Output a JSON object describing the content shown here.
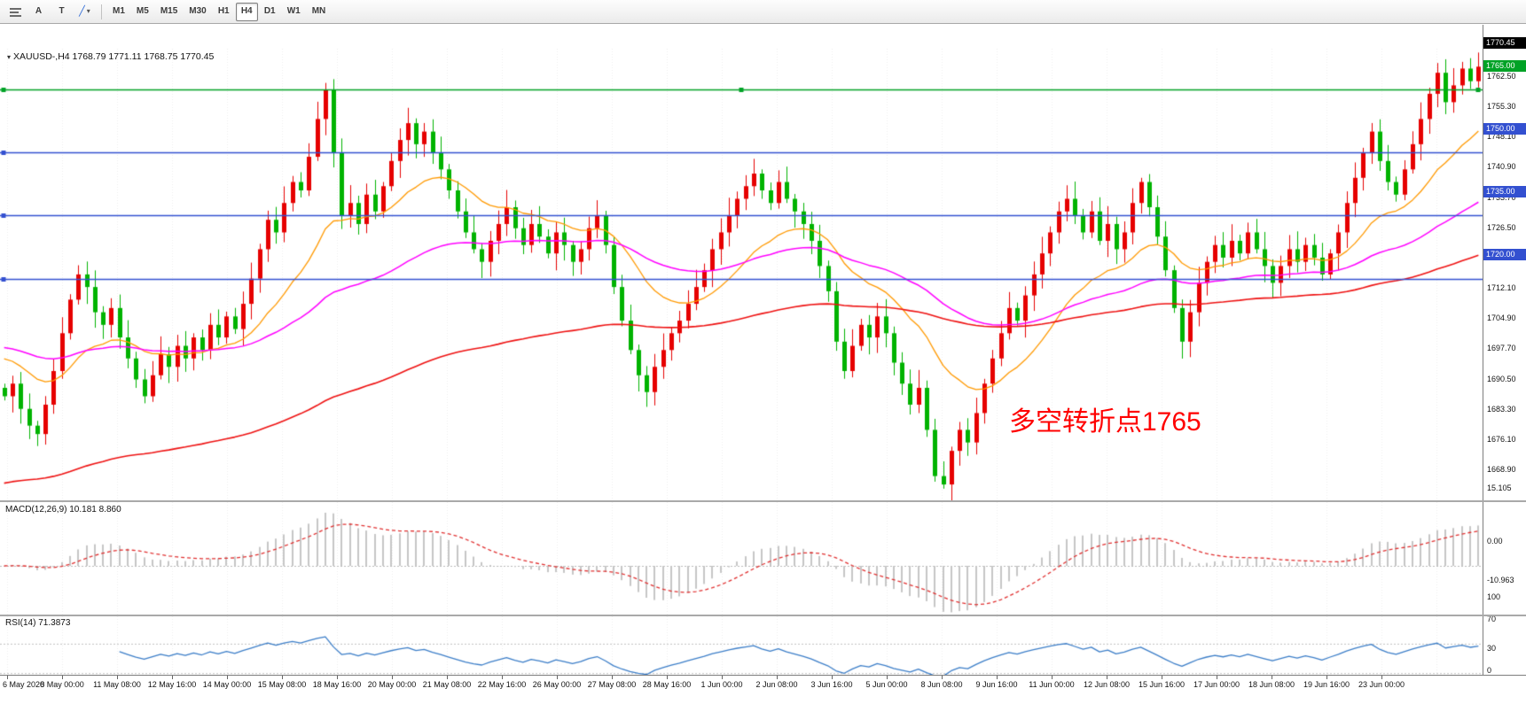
{
  "toolbar": {
    "cursor_label": "A",
    "text_label": "T",
    "draw_glyph": "╱",
    "caret_glyph": "▾",
    "timeframes": [
      "M1",
      "M5",
      "M15",
      "M30",
      "H1",
      "H4",
      "D1",
      "W1",
      "MN"
    ],
    "active_timeframe": "H4"
  },
  "symbol_header": {
    "caret_glyph": "▾",
    "text": "XAUUSD-,H4 1768.79 1771.11 1768.75 1770.45"
  },
  "chart_data": {
    "type": "candlestick",
    "symbol": "XAUUSD-",
    "timeframe": "H4",
    "ohlc_current": {
      "open": 1768.79,
      "high": 1771.11,
      "low": 1768.75,
      "close": 1770.45
    },
    "current_price_label": "1770.45",
    "ylim": [
      1667,
      1775
    ],
    "price_ticks": [
      "1762.50",
      "1755.30",
      "1748.10",
      "1740.90",
      "1733.70",
      "1726.50",
      "1719.30",
      "1712.10",
      "1704.90",
      "1697.70",
      "1690.50",
      "1683.30",
      "1676.10",
      "1668.90"
    ],
    "horizontal_lines": [
      {
        "price": 1765,
        "label": "1765.00",
        "color": "#00a226",
        "selected": true
      },
      {
        "price": 1750,
        "label": "1750.00",
        "color": "#3350d0",
        "selected": false
      },
      {
        "price": 1735,
        "label": "1735.00",
        "color": "#3350d0",
        "selected": false
      },
      {
        "price": 1720,
        "label": "1720.00",
        "color": "#3350d0",
        "selected": false
      }
    ],
    "candles": {
      "first_open": 1694,
      "closes": [
        1692,
        1695,
        1689,
        1685,
        1683,
        1690,
        1698,
        1707,
        1715,
        1721,
        1718,
        1712,
        1709,
        1713,
        1706,
        1701,
        1696,
        1692,
        1697,
        1702,
        1699,
        1704,
        1701,
        1706,
        1703,
        1709,
        1706,
        1711,
        1708,
        1714,
        1720,
        1727,
        1734,
        1731,
        1738,
        1743,
        1741,
        1749,
        1758,
        1765,
        1750,
        1735,
        1738,
        1733,
        1740,
        1736,
        1742,
        1748,
        1753,
        1757,
        1752,
        1755,
        1750,
        1746,
        1741,
        1736,
        1731,
        1727,
        1724,
        1729,
        1733,
        1737,
        1732,
        1728,
        1733,
        1730,
        1726,
        1731,
        1728,
        1724,
        1727,
        1732,
        1735,
        1728,
        1718,
        1710,
        1703,
        1697,
        1693,
        1699,
        1703,
        1707,
        1710,
        1714,
        1718,
        1722,
        1727,
        1731,
        1735,
        1739,
        1742,
        1745,
        1741,
        1738,
        1743,
        1739,
        1736,
        1733,
        1729,
        1723,
        1717,
        1705,
        1698,
        1704,
        1709,
        1706,
        1711,
        1707,
        1700,
        1695,
        1690,
        1694,
        1684,
        1673,
        1671,
        1679,
        1684,
        1681,
        1688,
        1695,
        1701,
        1707,
        1713,
        1710,
        1716,
        1721,
        1726,
        1731,
        1736,
        1739,
        1735,
        1731,
        1736,
        1729,
        1733,
        1727,
        1731,
        1738,
        1743,
        1737,
        1730,
        1722,
        1713,
        1705,
        1712,
        1719,
        1724,
        1728,
        1725,
        1729,
        1726,
        1731,
        1727,
        1723,
        1719,
        1723,
        1727,
        1724,
        1728,
        1725,
        1721,
        1726,
        1731,
        1738,
        1744,
        1750,
        1755,
        1748,
        1743,
        1740,
        1746,
        1752,
        1758,
        1764,
        1769,
        1762,
        1766,
        1770,
        1767,
        1770.45
      ],
      "up_color": "#e60000",
      "down_color": "#00b300"
    },
    "moving_averages": [
      {
        "name": "fast",
        "color": "#ff9900",
        "period": 18
      },
      {
        "name": "mid",
        "color": "#ff00ff",
        "period": 55
      },
      {
        "name": "slow",
        "color": "#ee1111",
        "period": 120
      }
    ],
    "macd": {
      "label": "MACD(12,26,9) 10.181 8.860",
      "params": "12,26,9",
      "main": 10.181,
      "signal": 8.86,
      "scale_labels": [
        "15.105",
        "0.00",
        "-10.963"
      ],
      "scale_values": [
        15.105,
        0,
        -10.963
      ],
      "histogram_color": "#c6c6c6",
      "signal_color": "#e03030"
    },
    "rsi": {
      "label": "RSI(14) 71.3873",
      "period": 14,
      "value": 71.3873,
      "scale_labels": [
        "100",
        "70",
        "30",
        "0"
      ],
      "scale_values": [
        100,
        70,
        30,
        0
      ],
      "levels": [
        70,
        30
      ],
      "line_color": "#3c7ec8"
    },
    "time_axis": [
      "6 May 2020",
      "8 May 00:00",
      "11 May 08:00",
      "12 May 16:00",
      "14 May 00:00",
      "15 May 08:00",
      "18 May 16:00",
      "20 May 00:00",
      "21 May 08:00",
      "22 May 16:00",
      "26 May 00:00",
      "27 May 08:00",
      "28 May 16:00",
      "1 Jun 00:00",
      "2 Jun 08:00",
      "3 Jun 16:00",
      "5 Jun 00:00",
      "8 Jun 08:00",
      "9 Jun 16:00",
      "11 Jun 00:00",
      "12 Jun 08:00",
      "15 Jun 16:00",
      "17 Jun 00:00",
      "18 Jun 08:00",
      "19 Jun 16:00",
      "23 Jun 00:00"
    ],
    "annotation": {
      "text": "多空转折点1765",
      "color": "#ff0000"
    }
  }
}
